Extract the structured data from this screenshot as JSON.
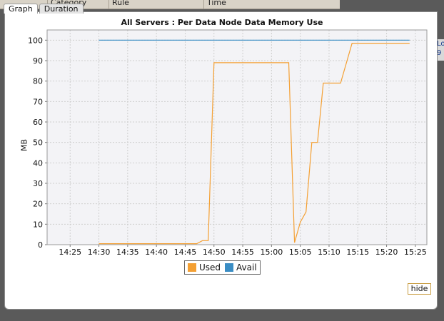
{
  "background": {
    "columns": [
      "Category",
      "Rule",
      "Time"
    ],
    "right_fragments": [
      "Lo",
      "9"
    ]
  },
  "tabs": [
    {
      "label": "Graph",
      "active": true
    },
    {
      "label": "Duration",
      "active": false
    }
  ],
  "chart_data": {
    "type": "line",
    "title": "All Servers : Per Data Node Data Memory Use",
    "xlabel": "",
    "ylabel": "MB",
    "x_unit": "time",
    "xlim": [
      "14:21",
      "15:27"
    ],
    "ylim": [
      0,
      105
    ],
    "yticks": [
      0,
      10,
      20,
      30,
      40,
      50,
      60,
      70,
      80,
      90,
      100
    ],
    "xticks": [
      "14:25",
      "14:30",
      "14:35",
      "14:40",
      "14:45",
      "14:50",
      "14:55",
      "15:00",
      "15:05",
      "15:10",
      "15:15",
      "15:20",
      "15:25"
    ],
    "grid": true,
    "legend_position": "bottom",
    "series": [
      {
        "name": "Used",
        "color": "#f4a033",
        "points": [
          [
            "14:30",
            0.5
          ],
          [
            "14:47",
            0.5
          ],
          [
            "14:48",
            2
          ],
          [
            "14:49",
            2
          ],
          [
            "14:50",
            89
          ],
          [
            "15:03",
            89
          ],
          [
            "15:04",
            1
          ],
          [
            "15:05",
            11
          ],
          [
            "15:06",
            16
          ],
          [
            "15:07",
            50
          ],
          [
            "15:08",
            50
          ],
          [
            "15:09",
            79
          ],
          [
            "15:12",
            79
          ],
          [
            "15:14",
            98.5
          ],
          [
            "15:24",
            98.5
          ]
        ]
      },
      {
        "name": "Avail",
        "color": "#3a8dc4",
        "points": [
          [
            "14:30",
            100
          ],
          [
            "15:24",
            100
          ]
        ]
      }
    ]
  },
  "hide_button": {
    "label": "hide"
  }
}
